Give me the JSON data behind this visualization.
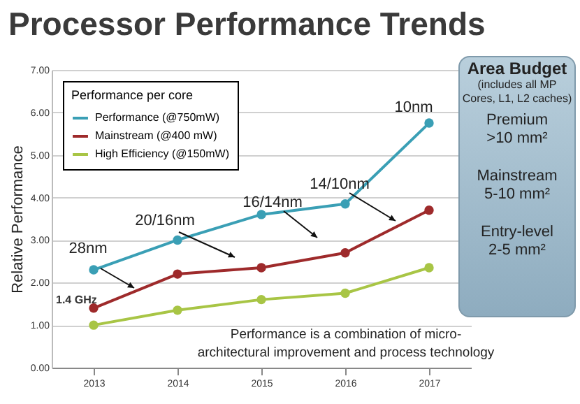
{
  "chart_data": {
    "type": "line",
    "title": "Processor Performance Trends",
    "ylabel": "Relative Performance",
    "legend_title": "Performance per core",
    "categories": [
      "2013",
      "2014",
      "2015",
      "2016",
      "2017"
    ],
    "series": [
      {
        "name": "Performance  (@750mW)",
        "color": "#3a9fb5",
        "values": [
          2.3,
          3.0,
          3.6,
          3.85,
          5.75
        ]
      },
      {
        "name": "Mainstream  (@400 mW)",
        "color": "#9e2a2b",
        "values": [
          1.4,
          2.2,
          2.35,
          2.7,
          3.7
        ]
      },
      {
        "name": "High Efficiency (@150mW)",
        "color": "#a8c545",
        "values": [
          1.0,
          1.35,
          1.6,
          1.75,
          2.35
        ]
      }
    ],
    "ylim": [
      0,
      7
    ],
    "yticks": [
      {
        "value": 0,
        "label": "0.00"
      },
      {
        "value": 1,
        "label": "1.00"
      },
      {
        "value": 2,
        "label": "2.00"
      },
      {
        "value": 3,
        "label": "3.00"
      },
      {
        "value": 4,
        "label": "4.00"
      },
      {
        "value": 5,
        "label": "5.00"
      },
      {
        "value": 6,
        "label": "6.00"
      },
      {
        "value": 7,
        "label": "7.00"
      }
    ],
    "grid": "y",
    "legend": "top left",
    "marker": "circle",
    "line_style": "solid",
    "annotations": [
      "Area Budget",
      "(includes all MP Cores, L1, L2 caches)",
      "Premium",
      ">10 mm²",
      "Mainstream",
      "5-10 mm²",
      "Entry-level",
      "2-5 mm²",
      "1.4 GHz",
      "Performance is a combination of micro-architectural improvement and process technology",
      "28nm",
      "20/16nm",
      "16/14nm",
      "14/10nm",
      "10nm"
    ]
  }
}
